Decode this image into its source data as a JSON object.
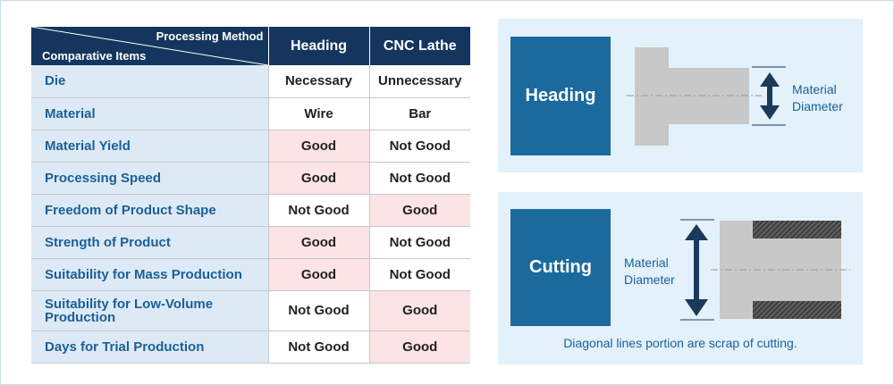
{
  "table": {
    "corner_top": "Processing Method",
    "corner_bottom": "Comparative Items",
    "columns": [
      "Heading",
      "CNC Lathe"
    ],
    "rows": [
      {
        "item": "Die",
        "heading": "Necessary",
        "cnc": "Unnecessary",
        "good": ""
      },
      {
        "item": "Material",
        "heading": "Wire",
        "cnc": "Bar",
        "good": ""
      },
      {
        "item": "Material Yield",
        "heading": "Good",
        "cnc": "Not Good",
        "good": "heading"
      },
      {
        "item": "Processing Speed",
        "heading": "Good",
        "cnc": "Not Good",
        "good": "heading"
      },
      {
        "item": "Freedom of Product Shape",
        "heading": "Not Good",
        "cnc": "Good",
        "good": "cnc"
      },
      {
        "item": "Strength of Product",
        "heading": "Good",
        "cnc": "Not Good",
        "good": "heading"
      },
      {
        "item": "Suitability for Mass Production",
        "heading": "Good",
        "cnc": "Not Good",
        "good": "heading"
      },
      {
        "item": "Suitability for Low-Volume Production",
        "heading": "Not Good",
        "cnc": "Good",
        "good": "cnc"
      },
      {
        "item": "Days for Trial Production",
        "heading": "Not Good",
        "cnc": "Good",
        "good": "cnc"
      }
    ]
  },
  "heading_panel": {
    "title": "Heading",
    "dimension_label_line1": "Material",
    "dimension_label_line2": "Diameter"
  },
  "cutting_panel": {
    "title": "Cutting",
    "dimension_label_line1": "Material",
    "dimension_label_line2": "Diameter",
    "note": "Diagonal lines portion are scrap of cutting."
  },
  "colors": {
    "header_navy": "#14365e",
    "item_bg": "#ddeaf5",
    "good_bg": "#fbe3e6",
    "panel_bg": "#e3f1fa",
    "box_blue": "#1a6a9e",
    "part_gray": "#c8c8c8",
    "arrow_navy": "#1a3a5c"
  }
}
